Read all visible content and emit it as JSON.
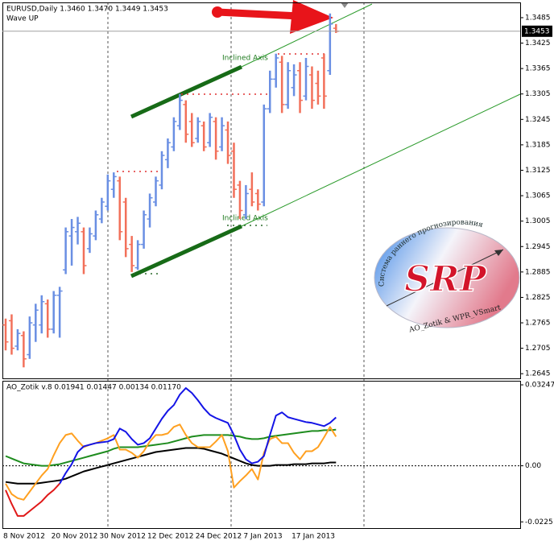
{
  "chart_data": [
    {
      "type": "ohlc",
      "title": "EURUSD,Daily  1.3460 1.3470 1.3449 1.3453",
      "subtitle": "Wave UP",
      "up_color": "#6a8fe3",
      "down_color": "#f2705a",
      "open": [
        1.276,
        1.277,
        1.271,
        1.2735,
        1.269,
        1.276,
        1.276,
        1.281,
        1.275,
        1.283,
        1.289,
        1.297,
        1.298,
        1.298,
        1.294,
        1.297,
        1.301,
        1.304,
        1.308,
        1.31,
        1.305,
        1.295,
        1.2895,
        1.295,
        1.301,
        1.305,
        1.309,
        1.315,
        1.318,
        1.323,
        1.328,
        1.324,
        1.32,
        1.323,
        1.319,
        1.324,
        1.318,
        1.322,
        1.317,
        1.309,
        1.302,
        1.308,
        1.307,
        1.305,
        1.327,
        1.334,
        1.338,
        1.328,
        1.332,
        1.336,
        1.33,
        1.335,
        1.333,
        1.339,
        1.336,
        1.346
      ],
      "high": [
        1.2775,
        1.2785,
        1.275,
        1.2745,
        1.278,
        1.281,
        1.283,
        1.282,
        1.284,
        1.285,
        1.299,
        1.301,
        1.3015,
        1.299,
        1.299,
        1.303,
        1.306,
        1.3115,
        1.312,
        1.311,
        1.306,
        1.297,
        1.296,
        1.303,
        1.307,
        1.311,
        1.317,
        1.32,
        1.325,
        1.3305,
        1.329,
        1.326,
        1.325,
        1.324,
        1.326,
        1.325,
        1.325,
        1.324,
        1.319,
        1.31,
        1.309,
        1.312,
        1.308,
        1.328,
        1.336,
        1.34,
        1.3395,
        1.338,
        1.3375,
        1.338,
        1.339,
        1.337,
        1.336,
        1.34,
        1.3495,
        1.347
      ],
      "low": [
        1.27,
        1.269,
        1.27,
        1.266,
        1.268,
        1.272,
        1.274,
        1.273,
        1.274,
        1.273,
        1.288,
        1.29,
        1.295,
        1.288,
        1.293,
        1.296,
        1.3,
        1.303,
        1.306,
        1.296,
        1.292,
        1.2885,
        1.289,
        1.294,
        1.299,
        1.304,
        1.308,
        1.313,
        1.317,
        1.322,
        1.319,
        1.318,
        1.319,
        1.317,
        1.318,
        1.315,
        1.317,
        1.314,
        1.306,
        1.301,
        1.301,
        1.304,
        1.303,
        1.304,
        1.326,
        1.332,
        1.326,
        1.327,
        1.33,
        1.326,
        1.329,
        1.327,
        1.328,
        1.327,
        1.335,
        1.3449
      ],
      "close": [
        1.272,
        1.2705,
        1.274,
        1.268,
        1.2765,
        1.2795,
        1.2815,
        1.275,
        1.283,
        1.284,
        1.298,
        1.299,
        1.3,
        1.29,
        1.2975,
        1.302,
        1.305,
        1.31,
        1.311,
        1.298,
        1.294,
        1.29,
        1.295,
        1.302,
        1.306,
        1.31,
        1.316,
        1.319,
        1.324,
        1.329,
        1.321,
        1.319,
        1.324,
        1.318,
        1.325,
        1.317,
        1.323,
        1.316,
        1.308,
        1.303,
        1.307,
        1.305,
        1.3045,
        1.327,
        1.334,
        1.339,
        1.328,
        1.336,
        1.335,
        1.329,
        1.337,
        1.329,
        1.33,
        1.33,
        1.347,
        1.3453
      ],
      "ylim": [
        1.2634,
        1.3521
      ],
      "yticks": [
        1.3485,
        1.3425,
        1.3365,
        1.3305,
        1.3245,
        1.3185,
        1.3125,
        1.3065,
        1.3005,
        1.2945,
        1.2885,
        1.2825,
        1.2765,
        1.2705,
        1.2645
      ],
      "current_price": 1.3453,
      "annotations": [
        "Inclined Axis",
        "Inclined Axis"
      ],
      "watermark": {
        "arc_text": "Система раннего прогнозирования",
        "logo": "SRP",
        "author": "AO_Zotik & WPR_VSmart"
      }
    },
    {
      "type": "line",
      "title": "AO_Zotik v.8 0.01941 0.01447 0.00134 0.01170",
      "categories": [
        "8 Nov 2012",
        null,
        null,
        null,
        null,
        null,
        null,
        null,
        "20 Nov 2012",
        null,
        null,
        null,
        null,
        null,
        null,
        null,
        "30 Nov 2012",
        null,
        null,
        null,
        null,
        null,
        null,
        null,
        "12 Dec 2012",
        null,
        null,
        null,
        null,
        null,
        null,
        null,
        "24 Dec 2012",
        null,
        null,
        null,
        null,
        null,
        null,
        null,
        "7 Jan 2013",
        null,
        null,
        null,
        null,
        null,
        null,
        null,
        "17 Jan 2013",
        null,
        null,
        null,
        null,
        null,
        null,
        null
      ],
      "series": [
        {
          "color": "#1e8c1e",
          "values": [
            0.0039,
            0.00292,
            0.00195,
            0.00097,
            0.00065,
            0.00032,
            0,
            0,
            0.00032,
            0.00065,
            0.0013,
            0.00195,
            0.0026,
            0.00325,
            0.0039,
            0.00455,
            0.0052,
            0.00584,
            0.00682,
            0.00747,
            0.00747,
            0.00747,
            0.00747,
            0.00779,
            0.00812,
            0.00844,
            0.00877,
            0.00909,
            0.00974,
            0.01039,
            0.01104,
            0.01169,
            0.01201,
            0.01234,
            0.01234,
            0.01234,
            0.01234,
            0.01234,
            0.01201,
            0.01169,
            0.01104,
            0.01072,
            0.01072,
            0.01104,
            0.01169,
            0.01201,
            0.01234,
            0.01266,
            0.01299,
            0.01331,
            0.01364,
            0.01396,
            0.01396,
            0.01429,
            0.01429,
            0.01447
          ]
        },
        {
          "color": "#000000",
          "values": [
            -0.00649,
            -0.00682,
            -0.00714,
            -0.00714,
            -0.00714,
            -0.00714,
            -0.00682,
            -0.00649,
            -0.00617,
            -0.00584,
            -0.0052,
            -0.00422,
            -0.00325,
            -0.00227,
            -0.00162,
            -0.00097,
            -0.00032,
            0.00032,
            0.00097,
            0.00162,
            0.00227,
            0.00292,
            0.00357,
            0.00422,
            0.00487,
            0.00552,
            0.00584,
            0.00617,
            0.00649,
            0.00682,
            0.00714,
            0.00714,
            0.00714,
            0.00682,
            0.00617,
            0.00552,
            0.00487,
            0.0039,
            0.00292,
            0.00195,
            0.00097,
            0.00032,
            0,
            0,
            0,
            0.00032,
            0.00032,
            0.00032,
            0.00065,
            0.00065,
            0.00065,
            0.00097,
            0.00097,
            0.00097,
            0.0013,
            0.00134
          ]
        },
        {
          "color": "#ffa020",
          "values": [
            -0.00714,
            -0.01136,
            -0.01299,
            -0.01364,
            -0.01039,
            -0.00714,
            -0.0039,
            -0.0013,
            0.00422,
            0.00909,
            0.01234,
            0.01299,
            0.01007,
            0.00747,
            0.00844,
            0.00909,
            0.01007,
            0.01104,
            0.01234,
            0.00649,
            0.00649,
            0.0052,
            0.00325,
            0.00584,
            0.00974,
            0.01234,
            0.01234,
            0.01299,
            0.01559,
            0.01656,
            0.01234,
            0.00909,
            0.00747,
            0.00747,
            0.00747,
            0.00974,
            0.01234,
            0.00584,
            -0.00877,
            -0.00617,
            -0.0039,
            -0.0013,
            -0.00552,
            0.0052,
            0.01072,
            0.01169,
            0.00909,
            0.00909,
            0.0052,
            0.0026,
            0.00584,
            0.00584,
            0.00747,
            0.01136,
            0.01559,
            0.0117
          ]
        },
        {
          "color": "#e01818",
          "values": [
            -0.00974,
            -0.01526,
            -0.02013,
            -0.02013,
            -0.01818,
            -0.01624,
            -0.01429,
            -0.01169,
            -0.00974,
            -0.00714,
            null,
            null,
            null,
            null,
            null,
            null,
            null,
            null,
            null,
            null,
            null,
            null,
            null,
            null,
            null,
            null,
            null,
            null,
            null,
            null,
            null,
            null,
            null,
            null,
            null,
            null,
            null,
            null,
            null,
            null,
            null,
            null,
            null,
            null,
            null,
            null,
            null,
            null,
            null,
            null,
            null,
            null,
            null,
            null,
            null,
            null
          ]
        },
        {
          "color": "#1414e6",
          "values": [
            null,
            null,
            null,
            null,
            null,
            null,
            null,
            null,
            null,
            -0.00714,
            -0.00292,
            0.00065,
            0.00552,
            0.00779,
            0.00844,
            0.00909,
            0.00942,
            0.00974,
            0.01072,
            0.01494,
            0.01364,
            0.01072,
            0.00844,
            0.00909,
            0.01104,
            0.01494,
            0.01883,
            0.02208,
            0.02435,
            0.02857,
            0.03117,
            0.02922,
            0.0263,
            0.02305,
            0.02046,
            0.01916,
            0.01818,
            0.01721,
            0.01234,
            0.00649,
            0.0026,
            0.00097,
            0.00162,
            0.0039,
            0.01234,
            0.02013,
            0.02143,
            0.01948,
            0.01883,
            0.01818,
            0.01753,
            0.01721,
            0.01656,
            0.01591,
            0.01721,
            0.01941
          ]
        }
      ],
      "ylim": [
        -0.025,
        0.0341
      ],
      "yticks": [
        0.03247,
        {
          "value": 0,
          "label": "0.00"
        },
        -0.0225
      ],
      "zero_line": true
    }
  ]
}
